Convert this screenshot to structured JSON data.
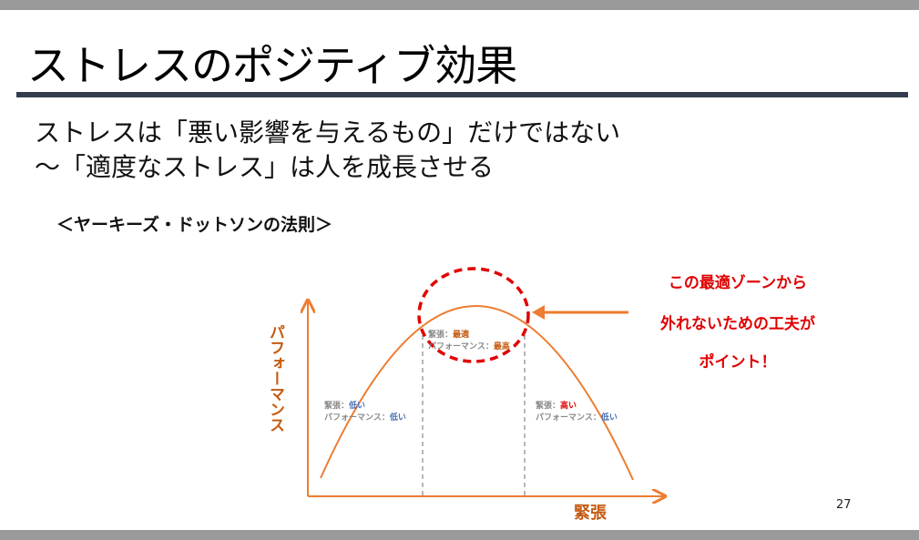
{
  "title": "ストレスのポジティブ効果",
  "subtitle_lines": [
    "ストレスは「悪い影響を与えるもの」だけではない",
    "～「適度なストレス」は人を成長させる"
  ],
  "law_heading": "＜ヤーキーズ・ドットソンの法則＞",
  "diagram": {
    "y_axis_label": "パフォーマンス",
    "x_axis_label": "緊張",
    "zones": [
      {
        "tension_label": "緊張：",
        "tension_value": "低い",
        "perf_label": "パフォーマンス：",
        "perf_value": "低い",
        "tension_color": "#4a6fb5",
        "perf_color": "#4a6fb5"
      },
      {
        "tension_label": "緊張：",
        "tension_value": "最適",
        "perf_label": "パフォーマンス：",
        "perf_value": "最高",
        "tension_color": "#c55a11",
        "perf_color": "#c55a11"
      },
      {
        "tension_label": "緊張：",
        "tension_value": "高い",
        "perf_label": "パフォーマンス：",
        "perf_value": "低い",
        "tension_color": "#e00000",
        "perf_color": "#4a6fb5"
      }
    ],
    "curve_color": "#ed7d31",
    "axis_label_color": "#c55a11",
    "highlight_color": "#e00000"
  },
  "callout_lines": [
    "この最適ゾーンから",
    "外れないための工夫が",
    "ポイント！"
  ],
  "page_number": "27"
}
